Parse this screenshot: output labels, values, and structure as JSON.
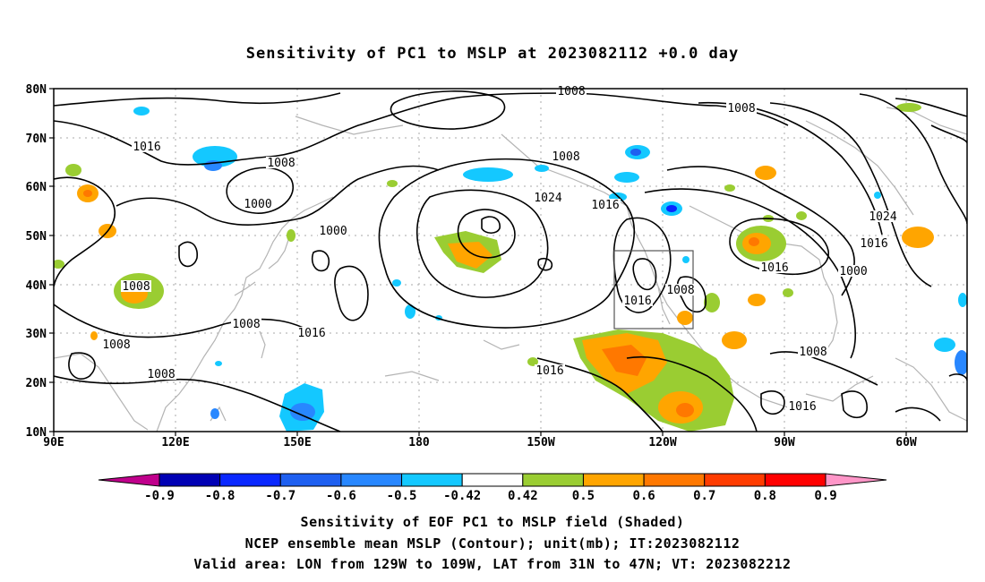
{
  "title": "Sensitivity of PC1 to MSLP at 2023082112 +0.0 day",
  "map": {
    "lat_ticks": [
      "80N",
      "70N",
      "60N",
      "50N",
      "40N",
      "30N",
      "20N",
      "10N"
    ],
    "lon_ticks": [
      "90E",
      "120E",
      "150E",
      "180",
      "150W",
      "120W",
      "90W",
      "60W"
    ],
    "lon_range": [
      "90E",
      "60W"
    ],
    "lat_range": [
      "10N",
      "80N"
    ],
    "grid": "dotted",
    "valid_area_box": {
      "lon": [
        "129W",
        "109W"
      ],
      "lat": [
        "31N",
        "47N"
      ]
    },
    "contour_labels": [
      "1008",
      "1000",
      "1016",
      "1008",
      "1000",
      "1008",
      "1016",
      "1024",
      "1016",
      "1008",
      "1008",
      "1016",
      "1016",
      "1008",
      "1016",
      "1008",
      "1024",
      "1016",
      "1000",
      "1008",
      "1016",
      "1008",
      "1008"
    ]
  },
  "colorbar": {
    "labels": [
      "-0.9",
      "-0.8",
      "-0.7",
      "-0.6",
      "-0.5",
      "-0.42",
      "0.42",
      "0.5",
      "0.6",
      "0.7",
      "0.8",
      "0.9"
    ],
    "colors": [
      "#c0008c",
      "#0000b4",
      "#0a28ff",
      "#1e5ff0",
      "#2887ff",
      "#14c8ff",
      "#ffffff",
      "#9acd32",
      "#ffa500",
      "#ff7800",
      "#ff3c00",
      "#ff0000",
      "#ff96c8"
    ]
  },
  "captions": [
    "Sensitivity of EOF PC1 to MSLP field (Shaded)",
    "NCEP ensemble mean MSLP (Contour); unit(mb); IT:2023082112",
    "Valid area: LON from 129W to 109W, LAT from 31N to 47N; VT: 2023082212"
  ]
}
